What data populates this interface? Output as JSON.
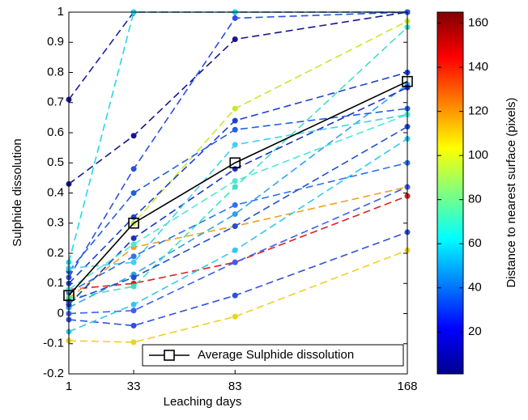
{
  "chart_data": {
    "type": "line",
    "x_label": "Leaching days",
    "y_label": "Sulphide dissolution",
    "x": [
      1,
      33,
      83,
      168
    ],
    "xlim": [
      1,
      168
    ],
    "xticks": [
      1,
      33,
      83,
      168
    ],
    "ylim": [
      -0.2,
      1
    ],
    "yticks": [
      -0.2,
      -0.1,
      0,
      0.1,
      0.2,
      0.3,
      0.4,
      0.5,
      0.6,
      0.7,
      0.8,
      0.9,
      1
    ],
    "series": [
      {
        "color": "#1a1aa0",
        "values": [
          0.71,
          1,
          1,
          1
        ]
      },
      {
        "color": "#16168c",
        "values": [
          0.43,
          0.59,
          0.91,
          1
        ]
      },
      {
        "color": "#22d8e8",
        "values": [
          0.17,
          1,
          1,
          1
        ]
      },
      {
        "color": "#2a50e0",
        "values": [
          0.12,
          0.48,
          0.98,
          1
        ]
      },
      {
        "color": "#c8e82a",
        "values": [
          0.06,
          0.3,
          0.68,
          0.97
        ]
      },
      {
        "color": "#e02020",
        "values": [
          0.08,
          0.1,
          0.17,
          0.39
        ]
      },
      {
        "color": "#f0a020",
        "values": [
          0.05,
          0.22,
          0.29,
          0.42
        ]
      },
      {
        "color": "#f0d020",
        "values": [
          -0.09,
          -0.095,
          -0.01,
          0.21
        ]
      },
      {
        "color": "#3050e0",
        "values": [
          -0.02,
          -0.04,
          0.06,
          0.27
        ]
      },
      {
        "color": "#3a60f0",
        "values": [
          0.0,
          0.01,
          0.17,
          0.42
        ]
      },
      {
        "color": "#30c8f0",
        "values": [
          -0.06,
          0.03,
          0.21,
          0.58
        ]
      },
      {
        "color": "#30a0f0",
        "values": [
          0.02,
          0.13,
          0.33,
          0.76
        ]
      },
      {
        "color": "#2040d0",
        "values": [
          0.1,
          0.32,
          0.64,
          0.8
        ]
      },
      {
        "color": "#40e0c0",
        "values": [
          0.05,
          0.09,
          0.42,
          0.95
        ]
      },
      {
        "color": "#2060e0",
        "values": [
          0.14,
          0.4,
          0.61,
          0.68
        ]
      },
      {
        "color": "#1a30c0",
        "values": [
          0.03,
          0.25,
          0.48,
          0.75
        ]
      },
      {
        "color": "#40d0f0",
        "values": [
          0.15,
          0.17,
          0.56,
          0.66
        ]
      },
      {
        "color": "#3070f0",
        "values": [
          0.07,
          0.19,
          0.36,
          0.5
        ]
      },
      {
        "color": "#2050d0",
        "values": [
          0.04,
          0.12,
          0.29,
          0.62
        ]
      },
      {
        "color": "#50e8d0",
        "values": [
          0.08,
          0.23,
          0.44,
          0.66
        ]
      },
      {
        "name": "Average Sulphide dissolution",
        "color": "#000000",
        "values": [
          0.06,
          0.3,
          0.5,
          0.77
        ]
      }
    ],
    "legend": "lower right",
    "colorbar": {
      "label": "Distance to nearest surface (pixels)",
      "lim": [
        1,
        165
      ],
      "ticks": [
        20,
        40,
        60,
        80,
        100,
        120,
        140,
        160
      ]
    }
  }
}
